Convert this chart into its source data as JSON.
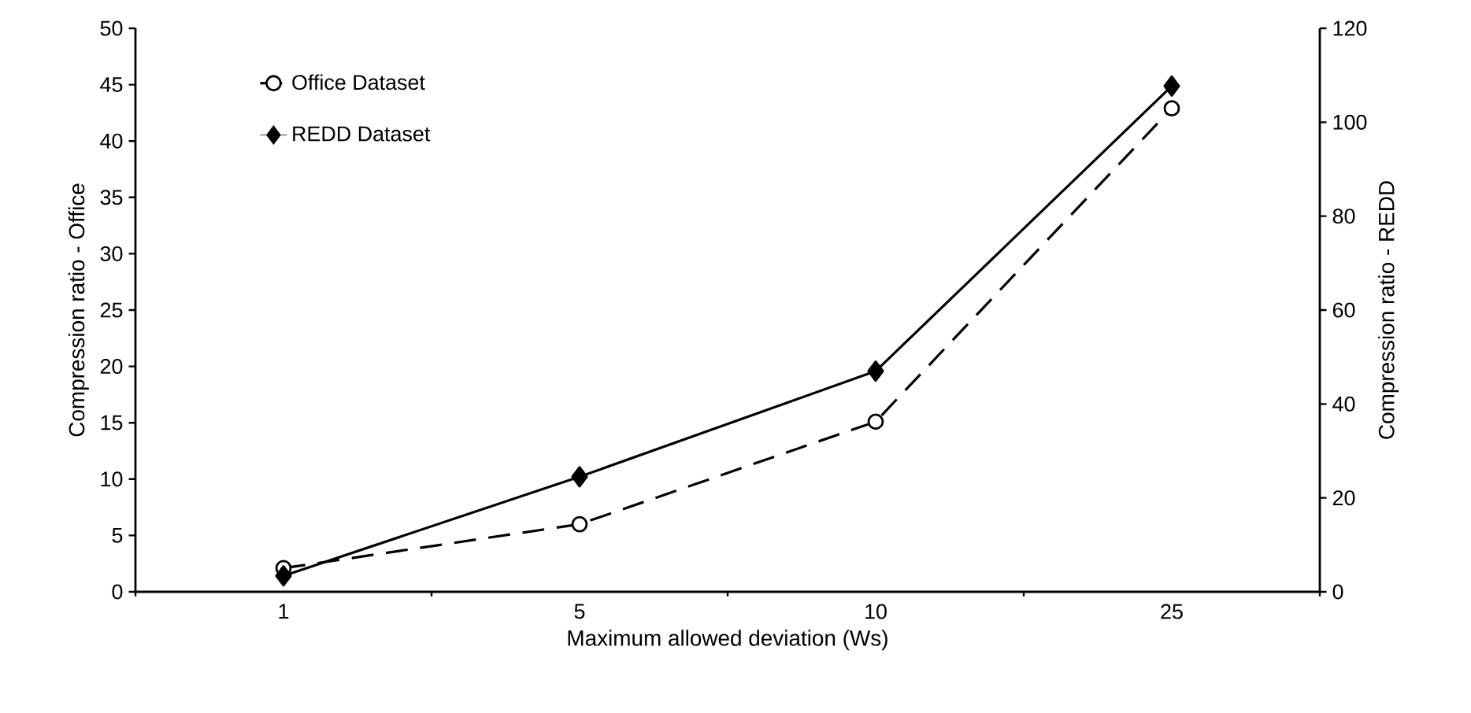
{
  "chart_data": {
    "type": "line",
    "xlabel": "Maximum allowed deviation (Ws)",
    "ylabel": "Compression ratio - Office",
    "y2label": "Compression ratio - REDD",
    "categories": [
      "1",
      "5",
      "10",
      "25"
    ],
    "series": [
      {
        "name": "Office Dataset",
        "color": "#000000",
        "values": [
          2.1,
          6.0,
          15.1,
          42.9
        ],
        "marker": "circle",
        "line_style": "dashed"
      },
      {
        "name": "REDD Dataset",
        "color": "#000000",
        "values": [
          3.4,
          24.5,
          47,
          107.7
        ],
        "marker": "diamond",
        "line_style": "solid",
        "axis": "y2"
      }
    ],
    "ylim": [
      0,
      50
    ],
    "yticks": [
      0,
      5,
      10,
      15,
      20,
      25,
      30,
      35,
      40,
      45,
      50
    ],
    "y2lim": [
      0,
      120
    ],
    "y2ticks": [
      0,
      20,
      40,
      60,
      80,
      100,
      120
    ],
    "legend": "top left",
    "grid": false
  }
}
